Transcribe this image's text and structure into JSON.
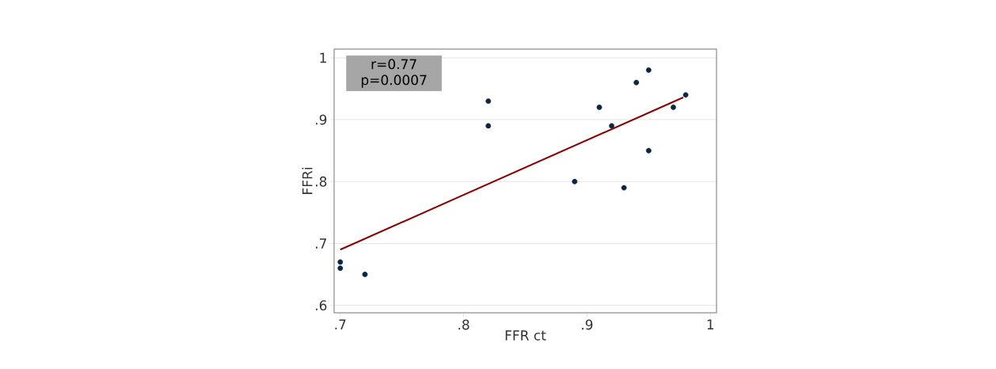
{
  "chart_data": {
    "type": "scatter",
    "xlabel": "FFR ct",
    "ylabel": "FFRi",
    "annotations": [
      "r=0.77",
      "p=0.0007"
    ],
    "xlim": [
      0.695,
      1.005
    ],
    "ylim": [
      0.588,
      1.014
    ],
    "xticks": [
      {
        "value": 0.7,
        "label": ".7"
      },
      {
        "value": 0.8,
        "label": ".8"
      },
      {
        "value": 0.9,
        "label": ".9"
      },
      1
    ],
    "yticks": [
      {
        "value": 0.6,
        "label": ".6"
      },
      {
        "value": 0.7,
        "label": ".7"
      },
      {
        "value": 0.8,
        "label": ".8"
      },
      {
        "value": 0.9,
        "label": ".9"
      },
      1
    ],
    "grid": "y",
    "marker": "circle",
    "series": [
      {
        "color": "#0d2740",
        "x": [
          0.7,
          0.7,
          0.72,
          0.82,
          0.82,
          0.89,
          0.91,
          0.92,
          0.93,
          0.94,
          0.95,
          0.95,
          0.97,
          0.98
        ],
        "values": [
          0.67,
          0.66,
          0.65,
          0.93,
          0.89,
          0.8,
          0.92,
          0.89,
          0.79,
          0.96,
          0.98,
          0.85,
          0.92,
          0.94
        ]
      },
      {
        "type": "line",
        "marker": "none",
        "color": "#8b0000",
        "x": [
          0.7,
          0.978
        ],
        "values": [
          0.69,
          0.936
        ]
      }
    ]
  }
}
